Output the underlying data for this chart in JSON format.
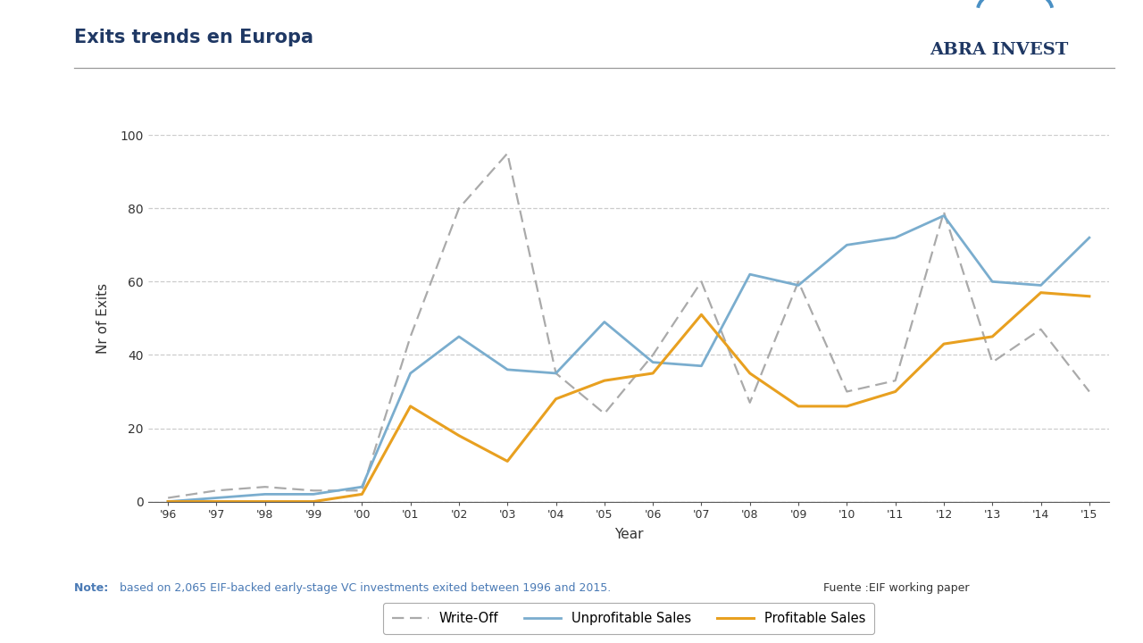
{
  "title": "Exits trends en Europa",
  "xlabel": "Year",
  "ylabel": "Nr of Exits",
  "years": [
    1996,
    1997,
    1998,
    1999,
    2000,
    2001,
    2002,
    2003,
    2004,
    2005,
    2006,
    2007,
    2008,
    2009,
    2010,
    2011,
    2012,
    2013,
    2014,
    2015
  ],
  "year_labels": [
    "'96",
    "'97",
    "'98",
    "'99",
    "'00",
    "'01",
    "'02",
    "'03",
    "'04",
    "'05",
    "'06",
    "'07",
    "'08",
    "'09",
    "'10",
    "'11",
    "'12",
    "'13",
    "'14",
    "'15"
  ],
  "write_off": [
    1,
    3,
    4,
    3,
    3,
    45,
    80,
    95,
    35,
    24,
    40,
    60,
    27,
    60,
    30,
    33,
    79,
    38,
    47,
    30
  ],
  "unprofitable_sales": [
    0,
    1,
    2,
    2,
    4,
    35,
    45,
    36,
    35,
    49,
    38,
    37,
    62,
    59,
    70,
    72,
    78,
    60,
    59,
    72
  ],
  "profitable_sales": [
    0,
    0,
    0,
    0,
    2,
    26,
    18,
    11,
    28,
    33,
    35,
    51,
    35,
    26,
    26,
    30,
    43,
    45,
    57,
    56
  ],
  "write_off_color": "#aaaaaa",
  "unprofitable_sales_color": "#7aadce",
  "profitable_sales_color": "#e8a020",
  "ylim": [
    0,
    100
  ],
  "yticks": [
    0,
    20,
    40,
    60,
    80,
    100
  ],
  "bg_color": "#ffffff",
  "grid_color": "#cccccc",
  "footer_bg": "#1f3864",
  "title_color": "#1f3864",
  "abra_invest_color": "#1f3864",
  "arc_color": "#4a90c4",
  "note_color": "#4a7ab5",
  "source_color": "#333333"
}
